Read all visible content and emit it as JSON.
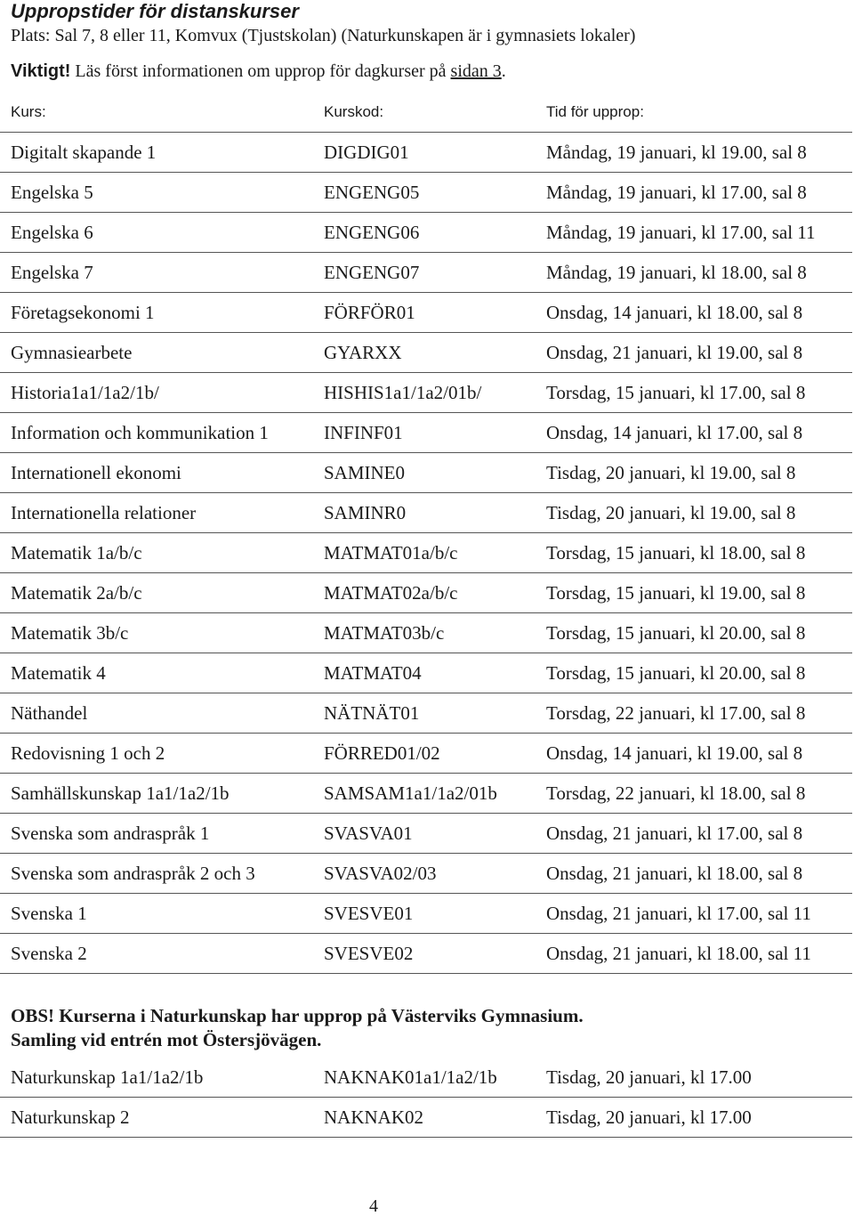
{
  "title": "Uppropstider för distanskurser",
  "place": "Plats: Sal 7, 8 eller 11, Komvux (Tjustskolan) (Naturkunskapen är i gymnasiets lokaler)",
  "important": {
    "label": "Viktigt!",
    "text_before": " Läs först informationen om upprop för dagkurser på ",
    "link": "sidan 3",
    "text_after": "."
  },
  "table_headers": {
    "course": "Kurs:",
    "code": "Kurskod:",
    "time": "Tid för upprop:"
  },
  "courses": [
    {
      "course": "Digitalt skapande 1",
      "code": "DIGDIG01",
      "time": "Måndag, 19 januari, kl 19.00, sal 8"
    },
    {
      "course": "Engelska 5",
      "code": "ENGENG05",
      "time": "Måndag, 19 januari, kl 17.00, sal 8"
    },
    {
      "course": "Engelska 6",
      "code": "ENGENG06",
      "time": "Måndag, 19 januari, kl 17.00, sal 11"
    },
    {
      "course": "Engelska 7",
      "code": "ENGENG07",
      "time": "Måndag, 19 januari, kl 18.00, sal 8"
    },
    {
      "course": "Företagsekonomi 1",
      "code": "FÖRFÖR01",
      "time": "Onsdag, 14 januari, kl 18.00, sal 8"
    },
    {
      "course": "Gymnasiearbete",
      "code": "GYARXX",
      "time": "Onsdag, 21 januari, kl 19.00, sal 8"
    },
    {
      "course": "Historia1a1/1a2/1b/",
      "code": "HISHIS1a1/1a2/01b/",
      "time": "Torsdag, 15 januari, kl 17.00, sal 8"
    },
    {
      "course": "Information och kommunikation 1",
      "code": "INFINF01",
      "time": "Onsdag, 14 januari, kl 17.00, sal 8"
    },
    {
      "course": "Internationell ekonomi",
      "code": "SAMINE0",
      "time": "Tisdag, 20 januari, kl 19.00, sal 8"
    },
    {
      "course": "Internationella relationer",
      "code": "SAMINR0",
      "time": "Tisdag, 20 januari, kl 19.00, sal 8"
    },
    {
      "course": "Matematik 1a/b/c",
      "code": "MATMAT01a/b/c",
      "time": "Torsdag, 15 januari, kl 18.00, sal 8"
    },
    {
      "course": "Matematik 2a/b/c",
      "code": "MATMAT02a/b/c",
      "time": "Torsdag, 15 januari, kl 19.00, sal 8"
    },
    {
      "course": "Matematik 3b/c",
      "code": "MATMAT03b/c",
      "time": "Torsdag, 15 januari, kl 20.00, sal 8"
    },
    {
      "course": "Matematik 4",
      "code": "MATMAT04",
      "time": "Torsdag, 15 januari, kl 20.00, sal 8"
    },
    {
      "course": "Näthandel",
      "code": "NÄTNÄT01",
      "time": "Torsdag, 22 januari, kl 17.00, sal 8"
    },
    {
      "course": "Redovisning 1 och 2",
      "code": "FÖRRED01/02",
      "time": "Onsdag, 14 januari, kl 19.00, sal 8"
    },
    {
      "course": "Samhällskunskap 1a1/1a2/1b",
      "code": "SAMSAM1a1/1a2/01b",
      "time": "Torsdag, 22 januari, kl 18.00, sal 8"
    },
    {
      "course": "Svenska som andraspråk 1",
      "code": "SVASVA01",
      "time": "Onsdag, 21 januari, kl 17.00, sal 8"
    },
    {
      "course": "Svenska som andraspråk 2 och 3",
      "code": "SVASVA02/03",
      "time": "Onsdag, 21 januari, kl 18.00, sal 8"
    },
    {
      "course": "Svenska 1",
      "code": "SVESVE01",
      "time": "Onsdag, 21 januari, kl 17.00, sal 11"
    },
    {
      "course": "Svenska 2",
      "code": "SVESVE02",
      "time": "Onsdag, 21 januari, kl 18.00, sal 11"
    }
  ],
  "obs": {
    "line1": "OBS! Kurserna i Naturkunskap har upprop på Västerviks Gymnasium.",
    "line2": "Samling vid entrén mot Östersjövägen."
  },
  "nature_courses": [
    {
      "course": "Naturkunskap 1a1/1a2/1b",
      "code": "NAKNAK01a1/1a2/1b",
      "time": "Tisdag, 20 januari, kl 17.00"
    },
    {
      "course": "Naturkunskap 2",
      "code": "NAKNAK02",
      "time": "Tisdag, 20 januari, kl 17.00"
    }
  ],
  "page_number": "4"
}
